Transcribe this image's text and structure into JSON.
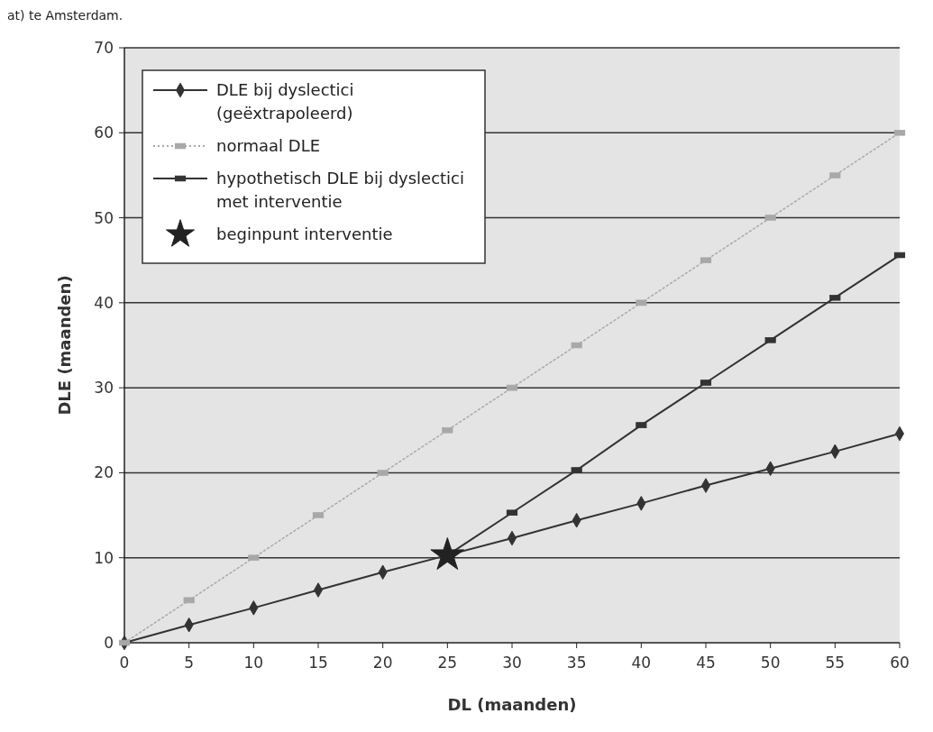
{
  "chart_data": {
    "type": "line",
    "xlabel": "DL (maanden)",
    "ylabel": "DLE (maanden)",
    "annotations": [
      "at) te Amsterdam."
    ],
    "x": [
      0,
      5,
      10,
      15,
      20,
      25,
      30,
      35,
      40,
      45,
      50,
      55,
      60
    ],
    "xlim": [
      0,
      60
    ],
    "xticks": [
      0,
      5,
      10,
      15,
      20,
      25,
      30,
      35,
      40,
      45,
      50,
      55,
      60
    ],
    "ylim": [
      0,
      70
    ],
    "yticks": [
      0,
      10,
      20,
      30,
      40,
      50,
      60,
      70
    ],
    "grid": "y",
    "legend": "top left",
    "series": [
      {
        "name": "DLE bij dyslectici (geëxtrapoleerd)",
        "color": "#333333",
        "marker": "diamond",
        "line_style": "solid",
        "values": [
          0,
          2.1,
          4.1,
          6.2,
          8.3,
          10.3,
          12.3,
          14.4,
          16.4,
          18.5,
          20.5,
          22.5,
          24.6
        ]
      },
      {
        "name": "normaal DLE",
        "color": "#a8a8a8",
        "marker": "square",
        "line_style": "dotted",
        "values": [
          0,
          5,
          10,
          15,
          20,
          25,
          30,
          35,
          40,
          45,
          50,
          55,
          60
        ]
      },
      {
        "name": "hypothetisch DLE bij dyslectici met interventie",
        "color": "#333333",
        "marker": "square",
        "line_style": "solid",
        "x": [
          25,
          30,
          35,
          40,
          45,
          50,
          55,
          60
        ],
        "values": [
          10.3,
          15.3,
          20.3,
          25.6,
          30.6,
          35.6,
          40.6,
          45.6
        ]
      },
      {
        "name": "beginpunt interventie",
        "type": "scatter",
        "color": "#222222",
        "marker": "star",
        "x": [
          25
        ],
        "values": [
          10.3
        ]
      }
    ]
  }
}
